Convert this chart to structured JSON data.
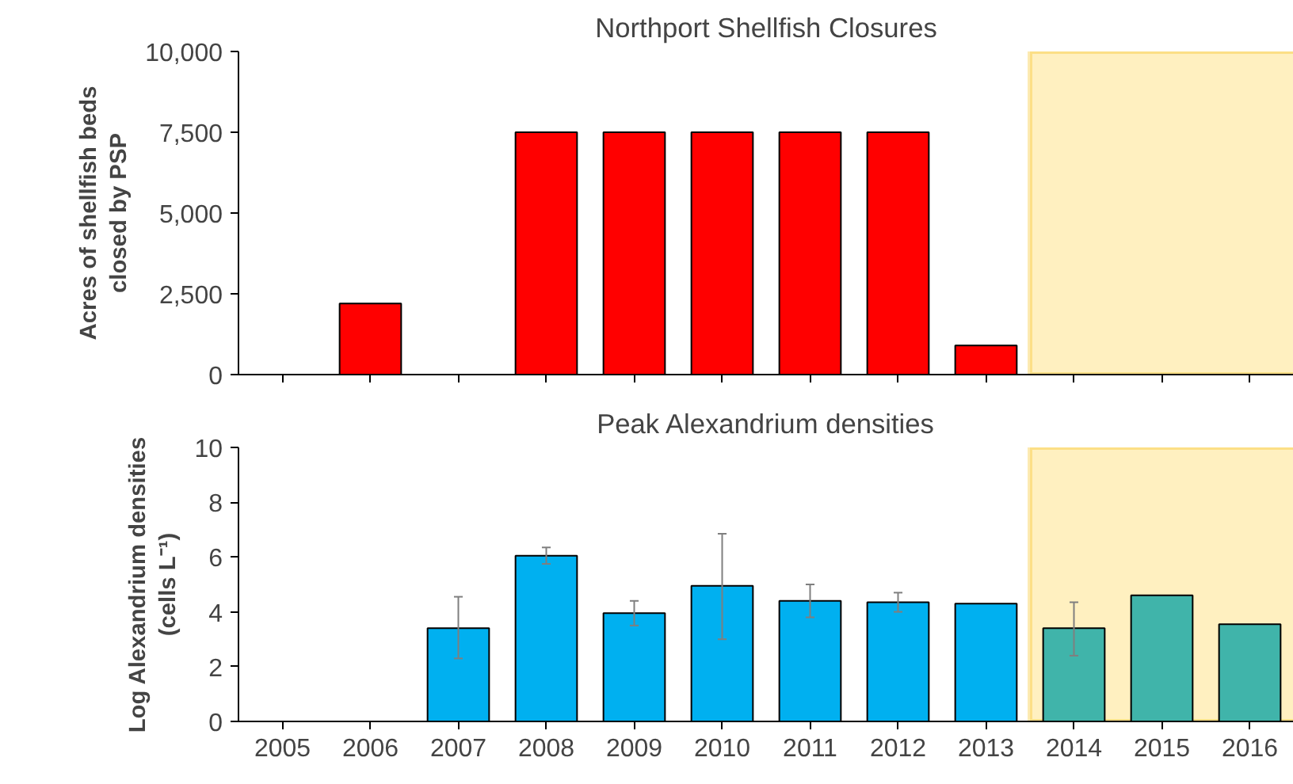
{
  "chart_data": [
    {
      "type": "bar",
      "title": "Northport Shellfish Closures",
      "ylabel": "Acres of shellfish beds closed by PSP",
      "categories": [
        "2005",
        "2006",
        "2007",
        "2008",
        "2009",
        "2010",
        "2011",
        "2012",
        "2013",
        "2014",
        "2015",
        "2016"
      ],
      "values": [
        null,
        2200,
        null,
        7500,
        7500,
        7500,
        7500,
        7500,
        900,
        null,
        null,
        null
      ],
      "color": "#ff0000",
      "ylim": [
        0,
        10000
      ],
      "yticks": [
        {
          "value": 0,
          "label": "0"
        },
        {
          "value": 2500,
          "label": "2,500"
        },
        {
          "value": 5000,
          "label": "5,000"
        },
        {
          "value": 7500,
          "label": "7,500"
        },
        {
          "value": 10000,
          "label": "10,000"
        }
      ],
      "grid": false,
      "tick_labels": "y",
      "bands": [
        {
          "axis": "x",
          "from": "2014",
          "to": "2016",
          "color": "#fff0c0"
        }
      ]
    },
    {
      "type": "bar",
      "title": "Peak Alexandrium densities",
      "ylabel": "Log Alexandrium densities (cells L⁻¹)",
      "categories": [
        "2005",
        "2006",
        "2007",
        "2008",
        "2009",
        "2010",
        "2011",
        "2012",
        "2013",
        "2014",
        "2015",
        "2016"
      ],
      "values": [
        null,
        null,
        3.4,
        6.05,
        3.95,
        4.95,
        4.4,
        4.35,
        4.3,
        3.4,
        4.6,
        3.55
      ],
      "colors": [
        "#00b0f0",
        "#00b0f0",
        "#00b0f0",
        "#00b0f0",
        "#00b0f0",
        "#00b0f0",
        "#00b0f0",
        "#00b0f0",
        "#00b0f0",
        "#40b4aa",
        "#40b4aa",
        "#40b4aa"
      ],
      "errors": [
        null,
        null,
        [
          2.3,
          4.55
        ],
        [
          5.75,
          6.35
        ],
        [
          3.5,
          4.4
        ],
        [
          3.0,
          6.85
        ],
        [
          3.8,
          5.0
        ],
        [
          4.0,
          4.7
        ],
        null,
        [
          2.4,
          4.35
        ],
        null,
        null
      ],
      "ylim": [
        0,
        10
      ],
      "yticks": [
        0,
        2,
        4,
        6,
        8,
        10
      ],
      "grid": false,
      "bands": [
        {
          "axis": "x",
          "from": "2014",
          "to": "2016",
          "color": "#fff0c0"
        }
      ]
    }
  ]
}
